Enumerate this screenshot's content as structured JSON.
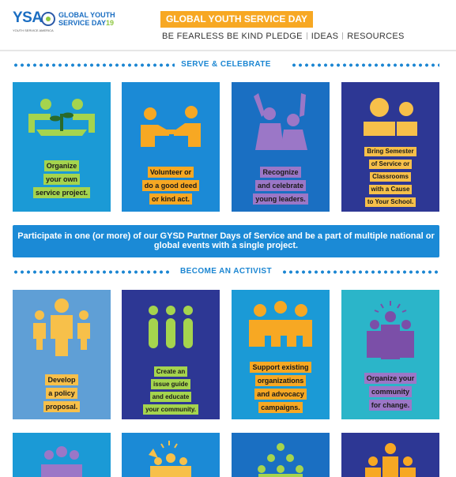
{
  "header": {
    "logo": {
      "mark": "YSA",
      "line1": "GLOBAL YOUTH",
      "line2": "SERVICE DAY",
      "year": "19",
      "tagline": "YOUTH SERVICE AMERICA"
    },
    "badge": "GLOBAL YOUTH SERVICE DAY",
    "nav": [
      "BE FEARLESS BE KIND PLEDGE",
      "IDEAS",
      "RESOURCES"
    ]
  },
  "sections": {
    "serve": "SERVE & CELEBRATE",
    "activist": "BECOME AN ACTIVIST"
  },
  "serve_tiles": [
    {
      "icon": "seedling-hands-icon",
      "bg": "#1b9ad6",
      "lines": [
        "Organize",
        "your own",
        "service project."
      ],
      "hl": "#a5d44e"
    },
    {
      "icon": "handshake-icon",
      "bg": "#1b8ad6",
      "lines": [
        "Volunteer or",
        "do a good deed",
        "or kind act."
      ],
      "hl": "#f7a823"
    },
    {
      "icon": "raised-hands-icon",
      "bg": "#1a6fc2",
      "lines": [
        "Recognize",
        "and celebrate",
        "young leaders."
      ],
      "hl": "#9b77c7"
    },
    {
      "icon": "teacher-student-icon",
      "bg": "#2d3794",
      "lines": [
        "Bring Semester",
        "of Service or",
        "Classrooms",
        "with a Cause",
        "to Your School."
      ],
      "hl": "#f7c04a"
    }
  ],
  "banner": "Participate in one (or more) of our GYSD Partner Days of Service and be a part of multiple national or global events with a single project.",
  "activist_tiles": [
    {
      "icon": "family-icon",
      "bg": "#5f9fd6",
      "lines": [
        "Develop",
        "a policy",
        "proposal."
      ],
      "hl": "#f7c04a"
    },
    {
      "icon": "three-people-icon",
      "bg": "#2d3794",
      "lines": [
        "Create an",
        "issue guide",
        "and educate",
        "your community."
      ],
      "hl": "#a5d44e"
    },
    {
      "icon": "group-linked-icon",
      "bg": "#1b9ad6",
      "lines": [
        "Support existing",
        "organizations",
        "and advocacy",
        "campaigns."
      ],
      "hl": "#f7a823"
    },
    {
      "icon": "leader-group-icon",
      "bg": "#2bb5c9",
      "lines": [
        "Organize your",
        "community",
        "for change."
      ],
      "hl": "#9b77c7"
    }
  ],
  "bottom_tiles": [
    {
      "icon": "people-circle-icon",
      "bg": "#1b9ad6"
    },
    {
      "icon": "cheering-group-icon",
      "bg": "#1b8ad6"
    },
    {
      "icon": "pyramid-group-icon",
      "bg": "#1a6fc2"
    },
    {
      "icon": "crowd-icon",
      "bg": "#2d3794"
    }
  ]
}
